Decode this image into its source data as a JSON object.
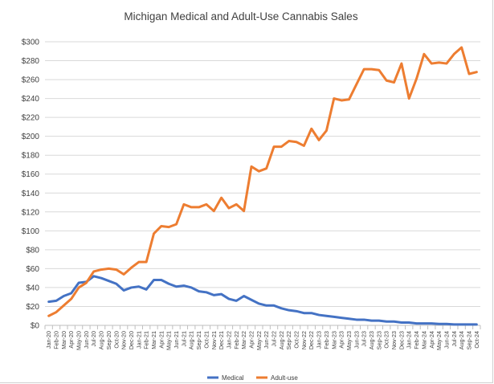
{
  "chart_data": {
    "type": "line",
    "title": "Michigan Medical and Adult-Use Cannabis Sales",
    "xlabel": "",
    "ylabel": "",
    "ylim": [
      0,
      300
    ],
    "y_ticks": [
      0,
      20,
      40,
      60,
      80,
      100,
      120,
      140,
      160,
      180,
      200,
      220,
      240,
      260,
      280,
      300
    ],
    "y_tick_labels": [
      "$0",
      "$20",
      "$40",
      "$60",
      "$80",
      "$100",
      "$120",
      "$140",
      "$160",
      "$180",
      "$200",
      "$220",
      "$240",
      "$260",
      "$280",
      "$300"
    ],
    "grid": "horizontal",
    "legend_position": "bottom",
    "categories": [
      "Jan-20",
      "Feb-20",
      "Mar-20",
      "Apr-20",
      "May-20",
      "Jun-20",
      "Jul-20",
      "Aug-20",
      "Sep-20",
      "Oct-20",
      "Nov-20",
      "Dec-20",
      "Jan-21",
      "Feb-21",
      "Mar-21",
      "Apr-21",
      "May-21",
      "Jun-21",
      "Jul-21",
      "Aug-21",
      "Sep-21",
      "Oct-21",
      "Nov-21",
      "Dec-21",
      "Jan-22",
      "Feb-22",
      "Mar-22",
      "Apr-22",
      "May-22",
      "Jun-22",
      "Jul-22",
      "Aug-22",
      "Sep-22",
      "Oct-22",
      "Nov-22",
      "Dec-22",
      "Jan-23",
      "Feb-23",
      "Mar-23",
      "Apr-23",
      "May-23",
      "Jun-23",
      "Jul-23",
      "Aug-23",
      "Sep-23",
      "Oct-23",
      "Nov-23",
      "Dec-23",
      "Jan-24",
      "Feb-24",
      "Mar-24",
      "Apr-24",
      "May-24",
      "Jun-24",
      "Jul-24",
      "Aug-24",
      "Sep-24",
      "Oct-24"
    ],
    "series": [
      {
        "name": "Medical",
        "color": "#4472c4",
        "values": [
          25,
          26,
          31,
          34,
          45,
          46,
          52,
          50,
          47,
          44,
          37,
          40,
          41,
          38,
          48,
          48,
          44,
          41,
          42,
          40,
          36,
          35,
          32,
          33,
          28,
          26,
          31,
          27,
          23,
          21,
          21,
          18,
          16,
          15,
          13,
          13,
          11,
          10,
          9,
          8,
          7,
          6,
          6,
          5,
          5,
          4,
          4,
          3,
          3,
          2,
          2,
          2,
          1.5,
          1.5,
          1,
          1,
          1,
          1
        ]
      },
      {
        "name": "Adult-use",
        "color": "#ed7d31",
        "values": [
          10,
          14,
          21,
          28,
          40,
          45,
          57,
          59,
          60,
          59,
          54,
          61,
          67,
          67,
          97,
          105,
          104,
          107,
          128,
          125,
          125,
          128,
          121,
          135,
          124,
          128,
          121,
          168,
          163,
          166,
          189,
          189,
          195,
          194,
          190,
          208,
          196,
          206,
          240,
          238,
          239,
          255,
          271,
          271,
          270,
          259,
          257,
          277,
          240,
          261,
          287,
          277,
          278,
          277,
          287,
          294,
          266,
          268
        ]
      }
    ]
  }
}
